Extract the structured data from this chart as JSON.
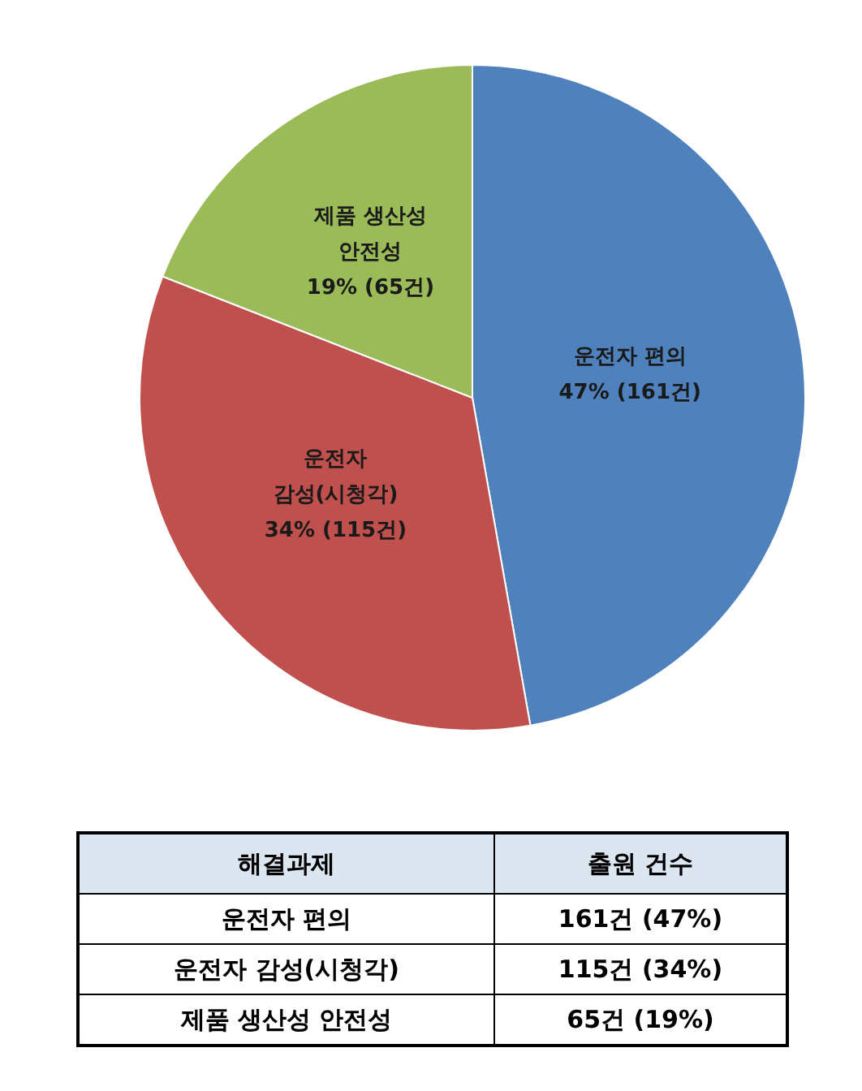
{
  "chart_data": {
    "type": "pie",
    "categories": [
      "운전자 편의",
      "운전자 감성(시청각)",
      "제품 생산성 안전성"
    ],
    "values": [
      161,
      115,
      65
    ],
    "colors": [
      "#4f81bd",
      "#c0504d",
      "#9bbb59"
    ],
    "value_labels": [
      "47% (161건)",
      "34% (115건)",
      "19% (65건)"
    ],
    "annotations": [
      "해결과제",
      "출원 건수",
      "161건 (47%)",
      "115건 (34%)",
      "65건 (19%)"
    ]
  }
}
